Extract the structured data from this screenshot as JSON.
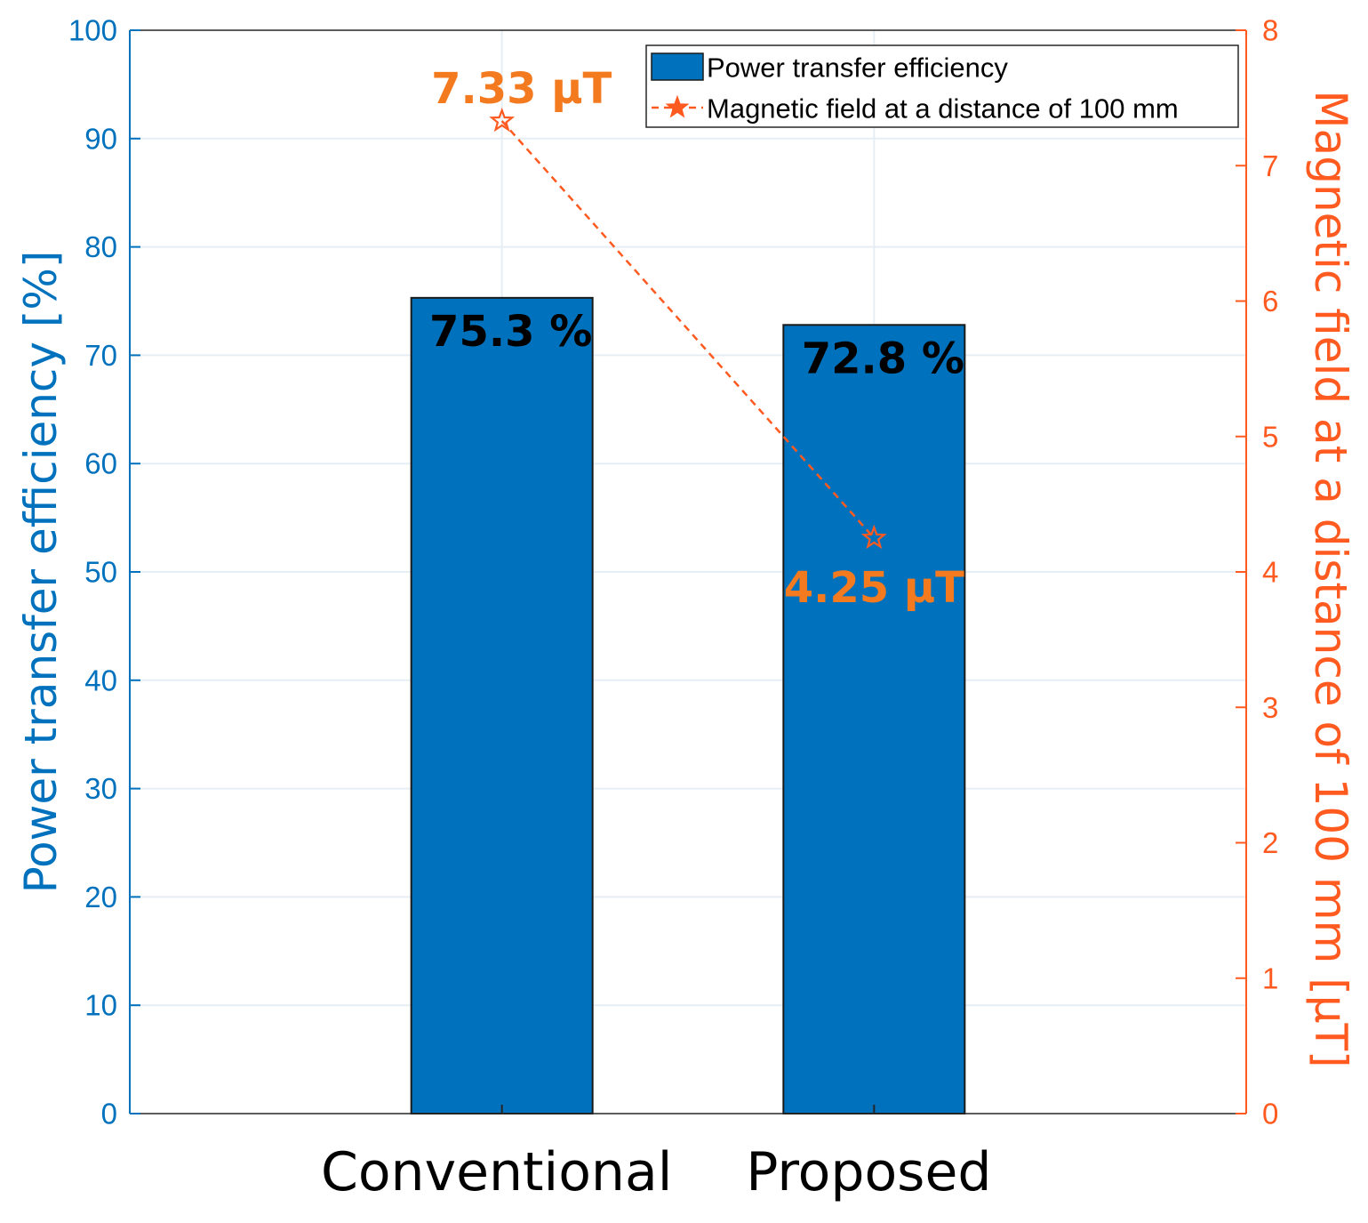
{
  "chart_data": {
    "type": "bar",
    "categories": [
      "Conventional",
      "Proposed"
    ],
    "series": [
      {
        "name": "Power transfer efficiency",
        "axis": "left",
        "kind": "bar",
        "values": [
          75.3,
          72.8
        ],
        "labels": [
          "75.3 %",
          "72.8 %"
        ],
        "color": "#0072BD"
      },
      {
        "name": "Magnetic field at a distance of 100 mm",
        "axis": "right",
        "kind": "line",
        "line_style": "dashed",
        "marker": "star",
        "values": [
          7.33,
          4.25
        ],
        "labels": [
          "7.33 μT",
          "4.25 μT"
        ],
        "color": "#FF5A1F"
      }
    ],
    "ylabel_left": "Power transfer efficiency [%]",
    "ylabel_right": "Magnetic field at a distance of 100 mm [μT]",
    "ylim_left": [
      0,
      100
    ],
    "ylim_right": [
      0,
      8
    ],
    "yticks_left": [
      0,
      10,
      20,
      30,
      40,
      50,
      60,
      70,
      80,
      90,
      100
    ],
    "yticks_right": [
      0,
      1,
      2,
      3,
      4,
      5,
      6,
      7,
      8
    ],
    "grid": true,
    "legend_position": "top-right",
    "colors": {
      "left_axis": "#0072BD",
      "right_axis": "#FF5A1F",
      "bar_label": "#000000",
      "line_label": "#F47A20",
      "grid": "#E6EEF5"
    }
  }
}
